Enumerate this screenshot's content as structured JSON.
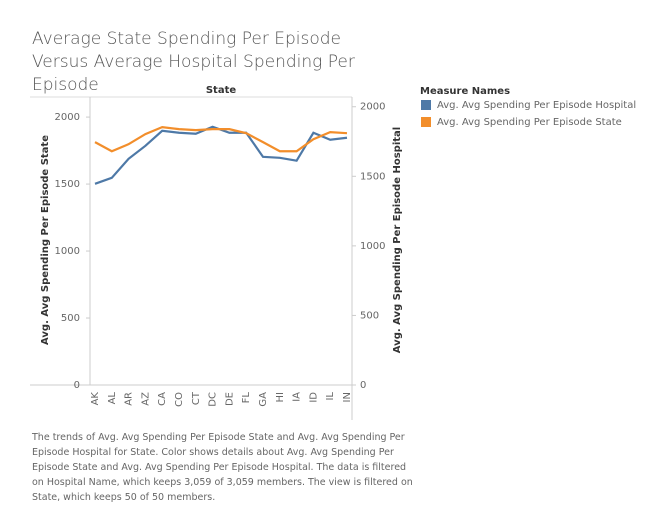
{
  "chart_data": {
    "type": "line",
    "title": "Average State Spending Per Episode Versus Average Hospital Spending Per Episode",
    "header": "State",
    "y_label": "Avg. Avg Spending Per Episode State",
    "y2_label": "Avg. Avg Spending Per Episode Hospital",
    "legend_title": "Measure Names",
    "categories": [
      "AK",
      "AL",
      "AR",
      "AZ",
      "CA",
      "CO",
      "CT",
      "DC",
      "DE",
      "FL",
      "GA",
      "HI",
      "IA",
      "ID",
      "IL",
      "IN"
    ],
    "series": [
      {
        "name": "Avg. Avg Spending Per Episode Hospital",
        "color": "#4e79a7",
        "axis": "y2",
        "values": [
          1446,
          1489,
          1626,
          1719,
          1827,
          1813,
          1806,
          1856,
          1813,
          1813,
          1640,
          1633,
          1612,
          1813,
          1763,
          1777
        ]
      },
      {
        "name": "Avg. Avg Spending Per Episode State",
        "color": "#f28e2b",
        "axis": "y",
        "values": [
          1813,
          1745,
          1798,
          1873,
          1925,
          1910,
          1903,
          1910,
          1910,
          1880,
          1813,
          1745,
          1745,
          1835,
          1888,
          1880
        ]
      }
    ],
    "ylim": [
      0,
      2150
    ],
    "yticks": [
      0,
      500,
      1000,
      1500,
      2000
    ],
    "y2lim": [
      0,
      2070
    ],
    "y2ticks": [
      0,
      500,
      1000,
      1500,
      2000
    ],
    "caption": "The trends of Avg. Avg Spending Per Episode State and Avg. Avg Spending Per Episode Hospital for State.  Color shows details about Avg. Avg Spending Per Episode State and Avg. Avg Spending Per Episode Hospital. The data is filtered on Hospital Name, which keeps 3,059 of 3,059 members. The view is filtered on State, which keeps 50 of 50 members."
  }
}
